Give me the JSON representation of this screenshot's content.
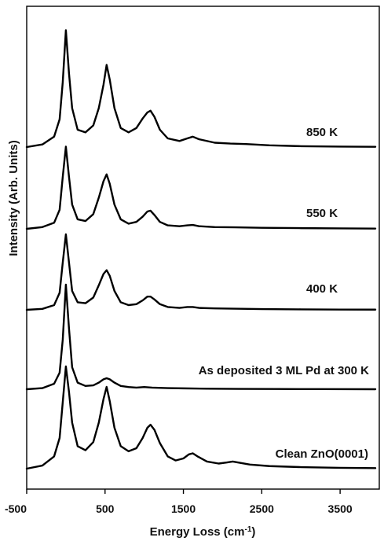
{
  "chart_data": {
    "type": "line",
    "title": "",
    "xlabel": "Energy Loss (cm",
    "xlabel_sup": "-1",
    "xlabel_tail": ")",
    "ylabel": "Intensity (Arb. Units)",
    "xlim": [
      -500,
      4000
    ],
    "xticks": [
      -500,
      500,
      1500,
      2500,
      3500
    ],
    "xtick_labels": [
      "-500",
      "500",
      "1500",
      "2500",
      "3500"
    ],
    "grid": false,
    "series": [
      {
        "name": "Clean ZnO(0001)",
        "offset": 0,
        "x": [
          -500,
          -300,
          -150,
          -80,
          -40,
          0,
          40,
          80,
          150,
          250,
          350,
          420,
          480,
          520,
          560,
          620,
          700,
          800,
          900,
          980,
          1040,
          1080,
          1130,
          1200,
          1300,
          1400,
          1500,
          1570,
          1620,
          1680,
          1800,
          1950,
          2050,
          2130,
          2200,
          2350,
          2600,
          3000,
          3500,
          3950
        ],
        "y": [
          0.0,
          0.03,
          0.12,
          0.3,
          0.65,
          1.0,
          0.75,
          0.45,
          0.22,
          0.18,
          0.26,
          0.45,
          0.68,
          0.8,
          0.66,
          0.4,
          0.22,
          0.17,
          0.2,
          0.3,
          0.4,
          0.43,
          0.38,
          0.25,
          0.12,
          0.08,
          0.1,
          0.14,
          0.15,
          0.12,
          0.07,
          0.05,
          0.06,
          0.07,
          0.06,
          0.04,
          0.025,
          0.015,
          0.008,
          0.005
        ]
      },
      {
        "name": "As deposited 3 ML Pd at 300 K",
        "offset": 1,
        "x": [
          -500,
          -300,
          -150,
          -80,
          -40,
          0,
          40,
          80,
          150,
          250,
          350,
          420,
          480,
          520,
          560,
          620,
          700,
          800,
          900,
          1000,
          1100,
          1300,
          1500,
          1800,
          2200,
          2700,
          3200,
          3950
        ],
        "y": [
          0.0,
          0.01,
          0.05,
          0.15,
          0.45,
          0.95,
          0.55,
          0.2,
          0.06,
          0.03,
          0.035,
          0.06,
          0.09,
          0.1,
          0.09,
          0.06,
          0.03,
          0.02,
          0.015,
          0.02,
          0.015,
          0.01,
          0.008,
          0.005,
          0.003,
          0.002,
          0.001,
          0.0
        ]
      },
      {
        "name": "400 K",
        "offset": 2,
        "x": [
          -500,
          -300,
          -150,
          -80,
          -40,
          0,
          40,
          80,
          150,
          250,
          350,
          420,
          480,
          520,
          560,
          620,
          700,
          800,
          900,
          980,
          1040,
          1080,
          1130,
          1200,
          1300,
          1450,
          1550,
          1620,
          1700,
          1900,
          2150,
          2500,
          3000,
          3500,
          3950
        ],
        "y": [
          0.0,
          0.01,
          0.05,
          0.18,
          0.5,
          0.8,
          0.5,
          0.2,
          0.08,
          0.07,
          0.13,
          0.26,
          0.38,
          0.42,
          0.36,
          0.2,
          0.08,
          0.05,
          0.06,
          0.1,
          0.14,
          0.14,
          0.11,
          0.06,
          0.03,
          0.02,
          0.03,
          0.03,
          0.02,
          0.015,
          0.012,
          0.008,
          0.005,
          0.003,
          0.002
        ]
      },
      {
        "name": "550 K",
        "offset": 3,
        "x": [
          -500,
          -300,
          -150,
          -80,
          -40,
          0,
          40,
          80,
          150,
          250,
          350,
          420,
          480,
          520,
          560,
          620,
          700,
          800,
          900,
          980,
          1040,
          1080,
          1130,
          1200,
          1300,
          1450,
          1550,
          1620,
          1700,
          1900,
          2150,
          2500,
          3000,
          3500,
          3950
        ],
        "y": [
          0.0,
          0.02,
          0.07,
          0.22,
          0.6,
          0.95,
          0.6,
          0.28,
          0.11,
          0.09,
          0.17,
          0.36,
          0.55,
          0.63,
          0.52,
          0.28,
          0.11,
          0.06,
          0.08,
          0.14,
          0.2,
          0.21,
          0.16,
          0.08,
          0.04,
          0.03,
          0.04,
          0.045,
          0.03,
          0.02,
          0.018,
          0.012,
          0.008,
          0.005,
          0.003
        ]
      },
      {
        "name": "850 K",
        "offset": 4,
        "x": [
          -500,
          -300,
          -150,
          -80,
          -40,
          0,
          40,
          80,
          150,
          250,
          350,
          420,
          480,
          520,
          560,
          620,
          700,
          800,
          900,
          980,
          1040,
          1080,
          1130,
          1200,
          1300,
          1450,
          1550,
          1620,
          1700,
          1900,
          2100,
          2300,
          2600,
          3000,
          3500,
          3950
        ],
        "y": [
          0.0,
          0.03,
          0.12,
          0.32,
          0.75,
          1.35,
          0.85,
          0.45,
          0.2,
          0.17,
          0.25,
          0.45,
          0.72,
          0.95,
          0.78,
          0.45,
          0.22,
          0.17,
          0.22,
          0.33,
          0.4,
          0.42,
          0.35,
          0.2,
          0.1,
          0.07,
          0.1,
          0.12,
          0.09,
          0.05,
          0.04,
          0.035,
          0.02,
          0.01,
          0.005,
          0.003
        ]
      }
    ]
  }
}
